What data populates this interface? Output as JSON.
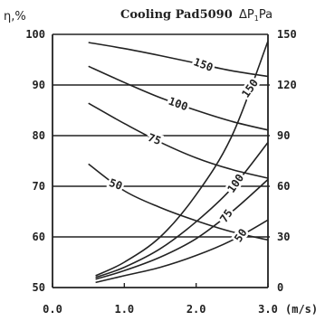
{
  "chart_data": {
    "type": "line",
    "title": "Cooling Pad5090",
    "left_axis_label": "η,%",
    "right_axis_label_main": "ΔP",
    "right_axis_label_sub": "1",
    "right_axis_label_end": "Pa",
    "xlabel_unit": "(m/s)",
    "x_ticks": [
      "0.0",
      "1.0",
      "2.0",
      "3.0"
    ],
    "x_tick_values": [
      0,
      1,
      2,
      3
    ],
    "xlim": [
      0,
      3
    ],
    "ylim_left": [
      50,
      100
    ],
    "ylim_right": [
      0,
      150
    ],
    "left_ticks": [
      100,
      90,
      80,
      70,
      60,
      50
    ],
    "right_ticks": [
      150,
      120,
      90,
      60,
      30,
      0
    ],
    "efficiency_series": [
      {
        "name": "150",
        "x": [
          0.5,
          1.0,
          1.5,
          2.0,
          2.5,
          3.0
        ],
        "y": [
          98.4,
          97.2,
          95.8,
          94.3,
          92.8,
          91.7
        ]
      },
      {
        "name": "100",
        "x": [
          0.5,
          1.0,
          1.5,
          2.0,
          2.5,
          3.0
        ],
        "y": [
          93.7,
          90.5,
          87.5,
          85.0,
          82.8,
          81.1
        ]
      },
      {
        "name": "75",
        "x": [
          0.5,
          1.0,
          1.5,
          2.0,
          2.5,
          3.0
        ],
        "y": [
          86.4,
          82.4,
          78.7,
          75.6,
          73.3,
          71.6
        ]
      },
      {
        "name": "50",
        "x": [
          0.5,
          1.0,
          1.5,
          2.0,
          2.5,
          3.0
        ],
        "y": [
          74.4,
          69.1,
          65.8,
          63.2,
          61.0,
          59.4
        ]
      }
    ],
    "pressure_series": [
      {
        "name": "150",
        "x": [
          0.6,
          1.0,
          1.5,
          2.0,
          2.5,
          3.0
        ],
        "y": [
          7,
          15,
          30,
          55,
          90,
          146
        ]
      },
      {
        "name": "100",
        "x": [
          0.6,
          1.0,
          1.5,
          2.0,
          2.5,
          3.0
        ],
        "y": [
          6,
          12,
          23,
          39,
          59,
          86
        ]
      },
      {
        "name": "75",
        "x": [
          0.6,
          1.0,
          1.5,
          2.0,
          2.5,
          3.0
        ],
        "y": [
          5,
          10,
          18,
          29,
          45,
          64
        ]
      },
      {
        "name": "50",
        "x": [
          0.6,
          1.0,
          1.5,
          2.0,
          2.5,
          3.0
        ],
        "y": [
          3,
          7,
          12,
          19,
          28,
          40
        ]
      }
    ],
    "grid": "horizontal",
    "line_color": "#222222"
  }
}
